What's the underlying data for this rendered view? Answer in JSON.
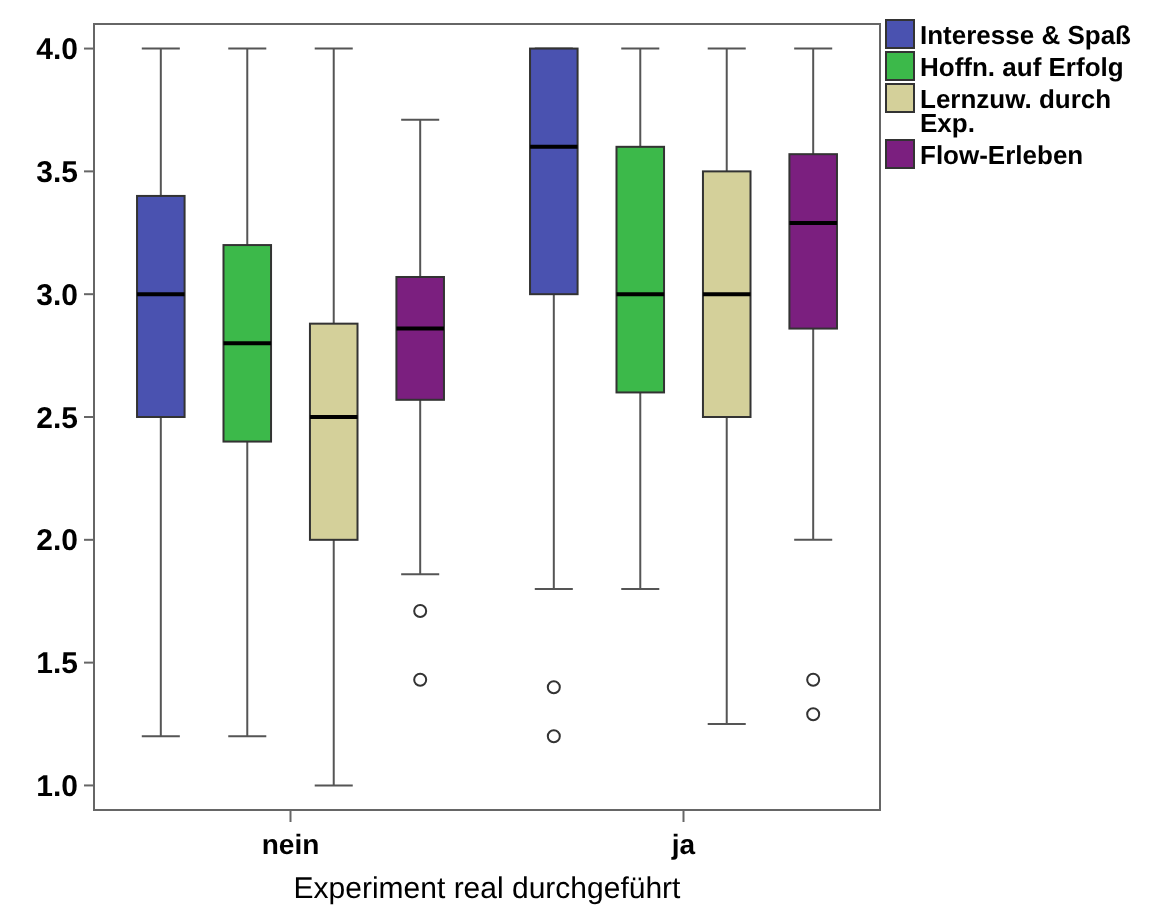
{
  "chart_data": {
    "type": "box",
    "xlabel": "Experiment real durchgeführt",
    "categories": [
      "nein",
      "ja"
    ],
    "ylim": [
      0.9,
      4.1
    ],
    "yticks": [
      {
        "value": 1,
        "label": "1.0"
      },
      {
        "value": 1.5,
        "label": "1.5"
      },
      {
        "value": 2,
        "label": "2.0"
      },
      {
        "value": 2.5,
        "label": "2.5"
      },
      {
        "value": 3,
        "label": "3.0"
      },
      {
        "value": 3.5,
        "label": "3.5"
      },
      {
        "value": 4,
        "label": "4.0"
      }
    ],
    "grid": false,
    "legend": "top right",
    "series": [
      {
        "name": "Interesse & Spaß",
        "color": "#4a52b0",
        "boxes": [
          {
            "low": 1.2,
            "q1": 2.5,
            "median": 3.0,
            "q3": 3.4,
            "high": 4.0
          },
          {
            "low": 1.8,
            "q1": 3.0,
            "median": 3.6,
            "q3": 4.0,
            "high": 4.0,
            "outliers": [
              1.4,
              1.2
            ]
          }
        ]
      },
      {
        "name": "Hoffn. auf Erfolg",
        "color": "#3cb94a",
        "boxes": [
          {
            "low": 1.2,
            "q1": 2.4,
            "median": 2.8,
            "q3": 3.2,
            "high": 4.0
          },
          {
            "low": 1.8,
            "q1": 2.6,
            "median": 3.0,
            "q3": 3.6,
            "high": 4.0
          }
        ]
      },
      {
        "name": "Lernzuw. durch Exp.",
        "color": "#d4d09a",
        "boxes": [
          {
            "low": 1.0,
            "q1": 2.0,
            "median": 2.5,
            "q3": 2.88,
            "high": 4.0
          },
          {
            "low": 1.25,
            "q1": 2.5,
            "median": 3.0,
            "q3": 3.5,
            "high": 4.0
          }
        ]
      },
      {
        "name": "Flow-Erleben",
        "color": "#7b1f7f",
        "boxes": [
          {
            "low": 1.86,
            "q1": 2.57,
            "median": 2.86,
            "q3": 3.07,
            "high": 3.71,
            "outliers": [
              1.71,
              1.43
            ]
          },
          {
            "low": 2.0,
            "q1": 2.86,
            "median": 3.29,
            "q3": 3.57,
            "high": 4.0,
            "outliers": [
              1.43,
              1.29
            ]
          }
        ]
      }
    ]
  }
}
